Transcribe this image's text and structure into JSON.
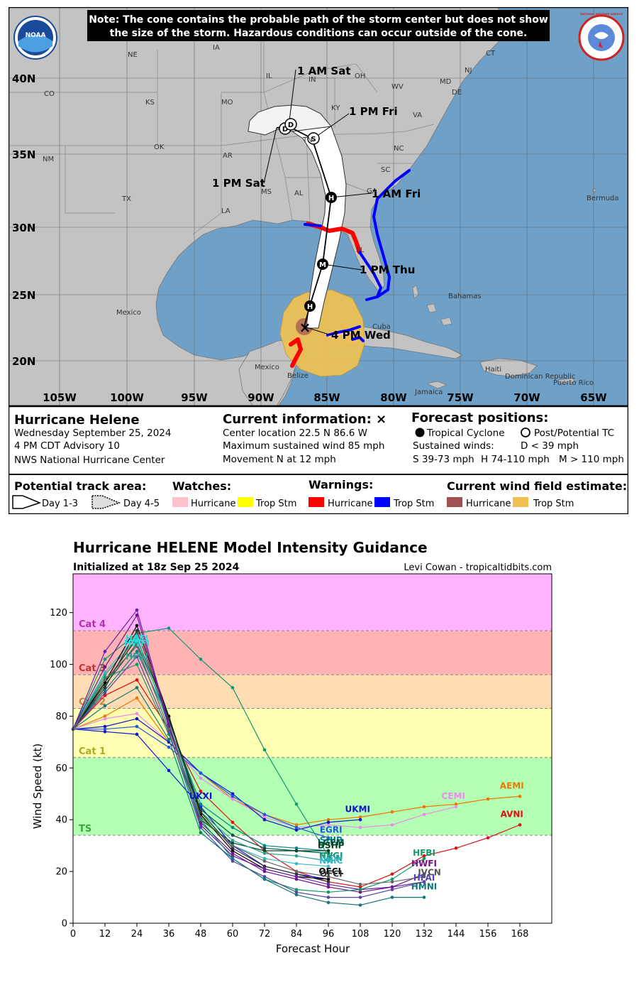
{
  "header": {
    "note_line1": "Note: The cone contains the probable path of the storm center but does not show",
    "note_line2": "the size of the storm. Hazardous conditions can occur outside of the cone.",
    "noaa_logo": "NOAA",
    "nws_logo": "NATIONAL WEATHER SERVICE"
  },
  "map": {
    "lat_labels": [
      "40N",
      "35N",
      "30N",
      "25N",
      "20N"
    ],
    "lon_labels": [
      "105W",
      "100W",
      "95W",
      "90W",
      "85W",
      "80W",
      "75W",
      "70W",
      "65W"
    ],
    "region_labels": {
      "ne": "NE",
      "ia": "IA",
      "il": "IL",
      "in": "IN",
      "oh": "OH",
      "co": "CO",
      "ks": "KS",
      "mo": "MO",
      "ky": "KY",
      "wv": "WV",
      "va": "VA",
      "nm": "NM",
      "ok": "OK",
      "ar": "AR",
      "tn": "TN",
      "nc": "NC",
      "sc": "SC",
      "tx": "TX",
      "ms": "MS",
      "al": "AL",
      "ga": "GA",
      "la": "LA",
      "fl": "FL",
      "ct": "CT",
      "nj": "NJ",
      "md": "MD",
      "de": "DE",
      "mexico_left": "Mexico",
      "mexico_yuc": "Mexico",
      "cuba": "Cuba",
      "bahamas": "Bahamas",
      "bermuda": "Bermuda",
      "jamaica": "Jamaica",
      "haiti": "Haiti",
      "dominican_republic": "Dominican Republic",
      "puerto_rico": "Puerto Rico",
      "belize": "Belize"
    },
    "forecast_labels": {
      "sat_1am": "1 AM Sat",
      "fri_1pm": "1 PM Fri",
      "sat_1pm": "1 PM Sat",
      "fri_1am": "1 AM Fri",
      "thu_1pm": "1 PM Thu",
      "wed_4pm": "4 PM Wed"
    },
    "markers": {
      "h": "H",
      "m": "M",
      "s": "S",
      "d": "D",
      "x": "×"
    }
  },
  "info": {
    "storm_name": "Hurricane Helene",
    "date_line": "Wednesday September 25, 2024",
    "advisory": "4 PM CDT Advisory 10",
    "agency": "NWS National Hurricane Center",
    "current_title": "Current information: ×",
    "center_location": "Center location 22.5 N 86.6 W",
    "max_wind": "Maximum sustained wind 85 mph",
    "movement": "Movement N at 12 mph",
    "forecast_title": "Forecast positions:",
    "tropical_cyclone": "Tropical Cyclone",
    "post_tc": "Post/Potential TC",
    "sustained_winds": "Sustained winds:",
    "d_range": "D < 39 mph",
    "s_range": "S 39-73 mph",
    "h_range": "H 74-110 mph",
    "m_range": "M > 110 mph"
  },
  "legend": {
    "track_title": "Potential track area:",
    "day13": "Day 1-3",
    "day45": "Day 4-5",
    "watches_title": "Watches:",
    "warnings_title": "Warnings:",
    "wind_title": "Current wind field estimate:",
    "hurricane": "Hurricane",
    "trop_stm": "Trop Stm",
    "colors": {
      "watch_hurricane": "#ffc0cb",
      "watch_ts": "#ffff00",
      "warn_hurricane": "#ff0000",
      "warn_ts": "#0000ff",
      "wind_hurricane": "#a05050",
      "wind_ts": "#f0c050"
    }
  },
  "chart_data": {
    "type": "line",
    "title": "Hurricane HELENE Model Intensity Guidance",
    "subtitle": "Initialized at 18z Sep 25 2024",
    "credit": "Levi Cowan - tropicaltidbits.com",
    "xlabel": "Forecast Hour",
    "ylabel": "Wind Speed (kt)",
    "xlim": [
      0,
      180
    ],
    "ylim": [
      0,
      135
    ],
    "xticks": [
      0,
      12,
      24,
      36,
      48,
      60,
      72,
      84,
      96,
      108,
      120,
      132,
      144,
      156,
      168
    ],
    "yticks": [
      0,
      20,
      40,
      60,
      80,
      100,
      120
    ],
    "bands": [
      {
        "label": "TS",
        "from": 34,
        "to": 64,
        "color": "#b3ffb3",
        "label_color": "#33aa33"
      },
      {
        "label": "Cat 1",
        "from": 64,
        "to": 83,
        "color": "#ffffb3",
        "label_color": "#aaaa22"
      },
      {
        "label": "Cat 2",
        "from": 83,
        "to": 96,
        "color": "#ffdcb3",
        "label_color": "#bb8844"
      },
      {
        "label": "Cat 3",
        "from": 96,
        "to": 113,
        "color": "#ffb3b3",
        "label_color": "#bb3333"
      },
      {
        "label": "Cat 4",
        "from": 113,
        "to": 137,
        "color": "#ffb3ff",
        "label_color": "#aa33aa"
      }
    ],
    "series": [
      {
        "name": "AEMI",
        "color": "#ee7700",
        "x": [
          0,
          12,
          24,
          36,
          48,
          60,
          72,
          84,
          96,
          108,
          120,
          132,
          144,
          156,
          168
        ],
        "values": [
          75,
          80,
          87,
          70,
          58,
          48,
          42,
          38,
          40,
          41,
          43,
          45,
          46,
          48,
          49
        ]
      },
      {
        "name": "AVNI",
        "color": "#dd1111",
        "x": [
          0,
          12,
          24,
          36,
          48,
          60,
          72,
          84,
          96,
          108,
          120,
          132,
          144,
          156,
          168
        ],
        "values": [
          75,
          88,
          94,
          75,
          51,
          39,
          28,
          20,
          16,
          14,
          19,
          26,
          29,
          33,
          38
        ]
      },
      {
        "name": "CEMI",
        "color": "#ee88ee",
        "x": [
          0,
          12,
          24,
          36,
          48,
          60,
          72,
          84,
          96,
          108,
          120,
          132,
          144
        ],
        "values": [
          75,
          79,
          81,
          70,
          56,
          48,
          41,
          37,
          38,
          37,
          38,
          42,
          45
        ]
      },
      {
        "name": "UKMI",
        "color": "#1111cc",
        "x": [
          0,
          12,
          24,
          36,
          48,
          60,
          72,
          84,
          96,
          108
        ],
        "values": [
          75,
          76,
          79,
          70,
          58,
          50,
          40,
          36,
          39,
          40
        ]
      },
      {
        "name": "UKXI",
        "color": "#1111dd",
        "x": [
          0,
          12,
          24,
          36,
          48,
          60,
          72,
          84,
          96
        ],
        "values": [
          75,
          74,
          73,
          59,
          45,
          30,
          22,
          19,
          17
        ]
      },
      {
        "name": "EGRI",
        "color": "#2255dd",
        "x": [
          0,
          12,
          24,
          36,
          48,
          60,
          72,
          84,
          96
        ],
        "values": [
          75,
          75,
          76,
          68,
          58,
          49,
          42,
          37,
          33
        ]
      },
      {
        "name": "SHIP",
        "color": "#008888",
        "x": [
          0,
          12,
          24,
          36,
          48,
          60,
          72,
          84,
          96
        ],
        "values": [
          75,
          90,
          105,
          78,
          46,
          37,
          30,
          29,
          28
        ]
      },
      {
        "name": "LGEM",
        "color": "#005544",
        "x": [
          0,
          12,
          24,
          36,
          48,
          60,
          72,
          84,
          96
        ],
        "values": [
          75,
          92,
          108,
          79,
          44,
          34,
          29,
          28,
          27
        ]
      },
      {
        "name": "DSHP",
        "color": "#004422",
        "x": [
          0,
          12,
          24,
          36,
          48,
          60,
          72,
          84,
          96
        ],
        "values": [
          75,
          93,
          110,
          80,
          40,
          31,
          28,
          28,
          28
        ]
      },
      {
        "name": "NVGI",
        "color": "#109870",
        "x": [
          0,
          12,
          24,
          36,
          48,
          60,
          72,
          84,
          96
        ],
        "values": [
          75,
          102,
          112,
          114,
          102,
          91,
          67,
          46,
          26
        ]
      },
      {
        "name": "IVCN",
        "color": "#2aa090",
        "x": [
          0,
          12,
          24,
          36,
          48,
          60,
          72,
          84,
          96
        ],
        "values": [
          75,
          96,
          110,
          77,
          43,
          32,
          27,
          26,
          24
        ]
      },
      {
        "name": "NNIC",
        "color": "#33bbcc",
        "x": [
          0,
          12,
          24,
          36,
          48,
          60,
          72,
          84,
          96
        ],
        "values": [
          75,
          97,
          111,
          76,
          41,
          30,
          25,
          23,
          22
        ]
      },
      {
        "name": "OFCL",
        "color": "#000000",
        "x": [
          0,
          12,
          24,
          36,
          48,
          60,
          72,
          84,
          96
        ],
        "values": [
          75,
          93,
          115,
          80,
          42,
          28,
          21,
          18,
          17
        ]
      },
      {
        "name": "OFCI",
        "color": "#333333",
        "x": [
          0,
          12,
          24,
          36,
          48,
          60,
          72,
          84,
          96
        ],
        "values": [
          75,
          91,
          113,
          79,
          43,
          29,
          22,
          19,
          16
        ]
      },
      {
        "name": "HAFI",
        "color": "#6622aa",
        "x": [
          0,
          12,
          24,
          36,
          48,
          60,
          72,
          84,
          96,
          108,
          120,
          132
        ],
        "values": [
          75,
          105,
          121,
          77,
          38,
          26,
          21,
          18,
          15,
          13,
          14,
          16
        ]
      },
      {
        "name": "HWFI",
        "color": "#771188",
        "x": [
          0,
          12,
          24,
          36,
          48,
          60,
          72,
          84,
          96,
          108,
          120,
          132
        ],
        "values": [
          75,
          99,
          119,
          76,
          39,
          27,
          20,
          17,
          14,
          12,
          14,
          19
        ]
      },
      {
        "name": "HFBI",
        "color": "#119966",
        "x": [
          0,
          12,
          24,
          36,
          48,
          60,
          72,
          84,
          96,
          108,
          120,
          132
        ],
        "values": [
          75,
          95,
          100,
          73,
          40,
          25,
          17,
          13,
          12,
          13,
          17,
          25
        ]
      },
      {
        "name": "HFAI",
        "color": "#5544aa",
        "x": [
          0,
          12,
          24,
          36,
          48,
          60,
          72,
          84,
          96,
          108,
          120,
          132
        ],
        "values": [
          75,
          89,
          103,
          74,
          37,
          24,
          18,
          12,
          10,
          10,
          13,
          16
        ]
      },
      {
        "name": "HMNI",
        "color": "#117777",
        "x": [
          0,
          12,
          24,
          36,
          48,
          60,
          72,
          84,
          96,
          108,
          120,
          132
        ],
        "values": [
          75,
          84,
          91,
          71,
          35,
          25,
          17,
          11,
          8,
          7,
          10,
          10
        ]
      },
      {
        "name": "IVCN2",
        "color": "#666666",
        "x": [
          0,
          12,
          24,
          36,
          48,
          60,
          72,
          84,
          96,
          108,
          120,
          132
        ],
        "values": [
          75,
          94,
          107,
          75,
          41,
          30,
          24,
          20,
          18,
          15,
          16,
          18
        ]
      }
    ],
    "end_labels": [
      {
        "name": "AEMI",
        "x": 165,
        "y": 52,
        "color": "#ee7700"
      },
      {
        "name": "AVNI",
        "x": 165,
        "y": 41,
        "color": "#dd1111"
      },
      {
        "name": "CEMI",
        "x": 143,
        "y": 48,
        "color": "#ee88ee"
      },
      {
        "name": "UKMI",
        "x": 107,
        "y": 43,
        "color": "#1111cc"
      },
      {
        "name": "UKXI",
        "x": 48,
        "y": 48,
        "color": "#1111dd"
      },
      {
        "name": "EGRI",
        "x": 97,
        "y": 35,
        "color": "#2255dd"
      },
      {
        "name": "SHIP",
        "x": 97,
        "y": 31,
        "color": "#008888"
      },
      {
        "name": "LGEM",
        "x": 97,
        "y": 30,
        "color": "#005544"
      },
      {
        "name": "DSHP",
        "x": 97,
        "y": 29,
        "color": "#004422"
      },
      {
        "name": "NVGI",
        "x": 97,
        "y": 25,
        "color": "#109870"
      },
      {
        "name": "IVCN",
        "x": 97,
        "y": 24,
        "color": "#2aa090"
      },
      {
        "name": "NNIC",
        "x": 97,
        "y": 23,
        "color": "#33bbcc"
      },
      {
        "name": "OFCL",
        "x": 97,
        "y": 19,
        "color": "#000000"
      },
      {
        "name": "OFCI",
        "x": 97,
        "y": 18,
        "color": "#333333"
      },
      {
        "name": "HFBI",
        "x": 132,
        "y": 26,
        "color": "#119966"
      },
      {
        "name": "HWFI",
        "x": 132,
        "y": 22,
        "color": "#771188"
      },
      {
        "name": "IVCN",
        "x": 134,
        "y": 18.5,
        "color": "#555555"
      },
      {
        "name": "HFAI",
        "x": 132,
        "y": 16.5,
        "color": "#5544aa"
      },
      {
        "name": "HMNI",
        "x": 132,
        "y": 13,
        "color": "#117777"
      },
      {
        "name": "HAFI",
        "x": 24,
        "y": 109,
        "color": "#22dddd"
      },
      {
        "name": "HWFI",
        "x": 24,
        "y": 107,
        "color": "#22dddd"
      },
      {
        "name": "HFBI",
        "x": 24,
        "y": 102,
        "color": "#2aa090"
      }
    ]
  }
}
